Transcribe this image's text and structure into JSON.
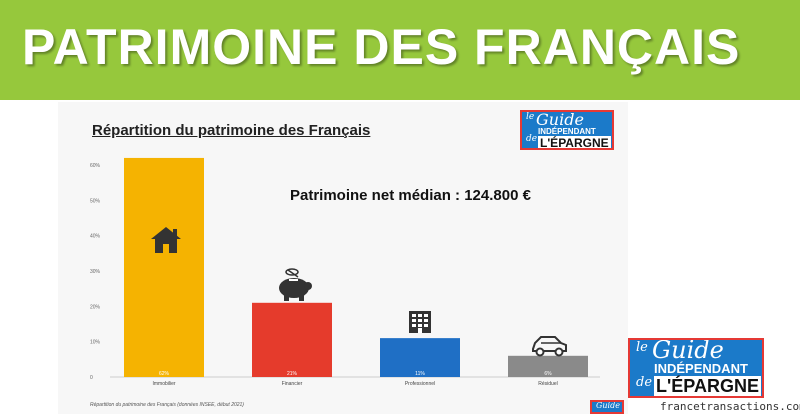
{
  "header": {
    "title": "PATRIMOINE DES FRANÇAIS",
    "banner_color": "#96c83c"
  },
  "logo": {
    "le": "le",
    "guide": "Guide",
    "independant": "INDÉPENDANT",
    "de": "de",
    "epargne": "L'ÉPARGNE"
  },
  "annotation": "Patrimoine net médian : 124.800 €",
  "source": "Répartition du patrimoine des Français (données INSEE, début 2021)",
  "footer": {
    "site": "francetransactions.com"
  },
  "chart_data": {
    "type": "bar",
    "title": "Répartition du patrimoine des Français",
    "categories": [
      "Immobilier",
      "Financier",
      "Professionnel",
      "Résiduel"
    ],
    "values": [
      62,
      21,
      11,
      6
    ],
    "value_labels": [
      "62%",
      "21%",
      "11%",
      "6%"
    ],
    "colors": [
      "#f5b301",
      "#e53b2c",
      "#1f6fc5",
      "#8a8a8a"
    ],
    "icons": [
      "house-icon",
      "piggy-bank-icon",
      "building-icon",
      "car-icon"
    ],
    "ylim": [
      0,
      60
    ],
    "yticks": [
      0,
      10,
      20,
      30,
      40,
      50,
      60
    ],
    "ytick_labels": [
      "0",
      "10%",
      "20%",
      "30%",
      "40%",
      "50%",
      "60%"
    ],
    "xlabel": "",
    "ylabel": "",
    "grid": false,
    "legend": "none"
  }
}
